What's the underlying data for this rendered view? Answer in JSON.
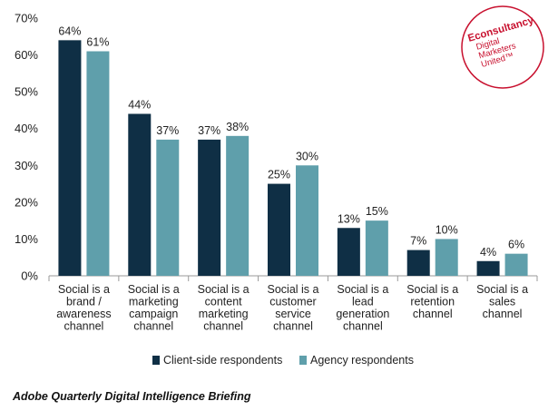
{
  "chart_data": {
    "type": "bar",
    "categories": [
      [
        "Social is a",
        "brand /",
        "awareness",
        "channel"
      ],
      [
        "Social is a",
        "marketing",
        "campaign",
        "channel"
      ],
      [
        "Social is a",
        "content",
        "marketing",
        "channel"
      ],
      [
        "Social is a",
        "customer",
        "service",
        "channel"
      ],
      [
        "Social is a",
        "lead",
        "generation",
        "channel"
      ],
      [
        "Social is a",
        "retention",
        "channel"
      ],
      [
        "Social is a",
        "sales",
        "channel"
      ]
    ],
    "series": [
      {
        "name": "Client-side respondents",
        "color": "#0f2f45",
        "values": [
          64,
          44,
          37,
          25,
          13,
          7,
          4
        ]
      },
      {
        "name": "Agency respondents",
        "color": "#5f9fab",
        "values": [
          61,
          37,
          38,
          30,
          15,
          10,
          6
        ]
      }
    ],
    "ylim": [
      0,
      70
    ],
    "yticks": [
      0,
      10,
      20,
      30,
      40,
      50,
      60,
      70
    ],
    "value_suffix": "%",
    "grid": false,
    "legend_position": "bottom-center"
  },
  "source": "Adobe Quarterly Digital Intelligence Briefing",
  "logo": {
    "line1": "Econsultancy",
    "line2": "Digital",
    "line3": "Marketers",
    "line4": "United™",
    "color": "#c8102e"
  }
}
